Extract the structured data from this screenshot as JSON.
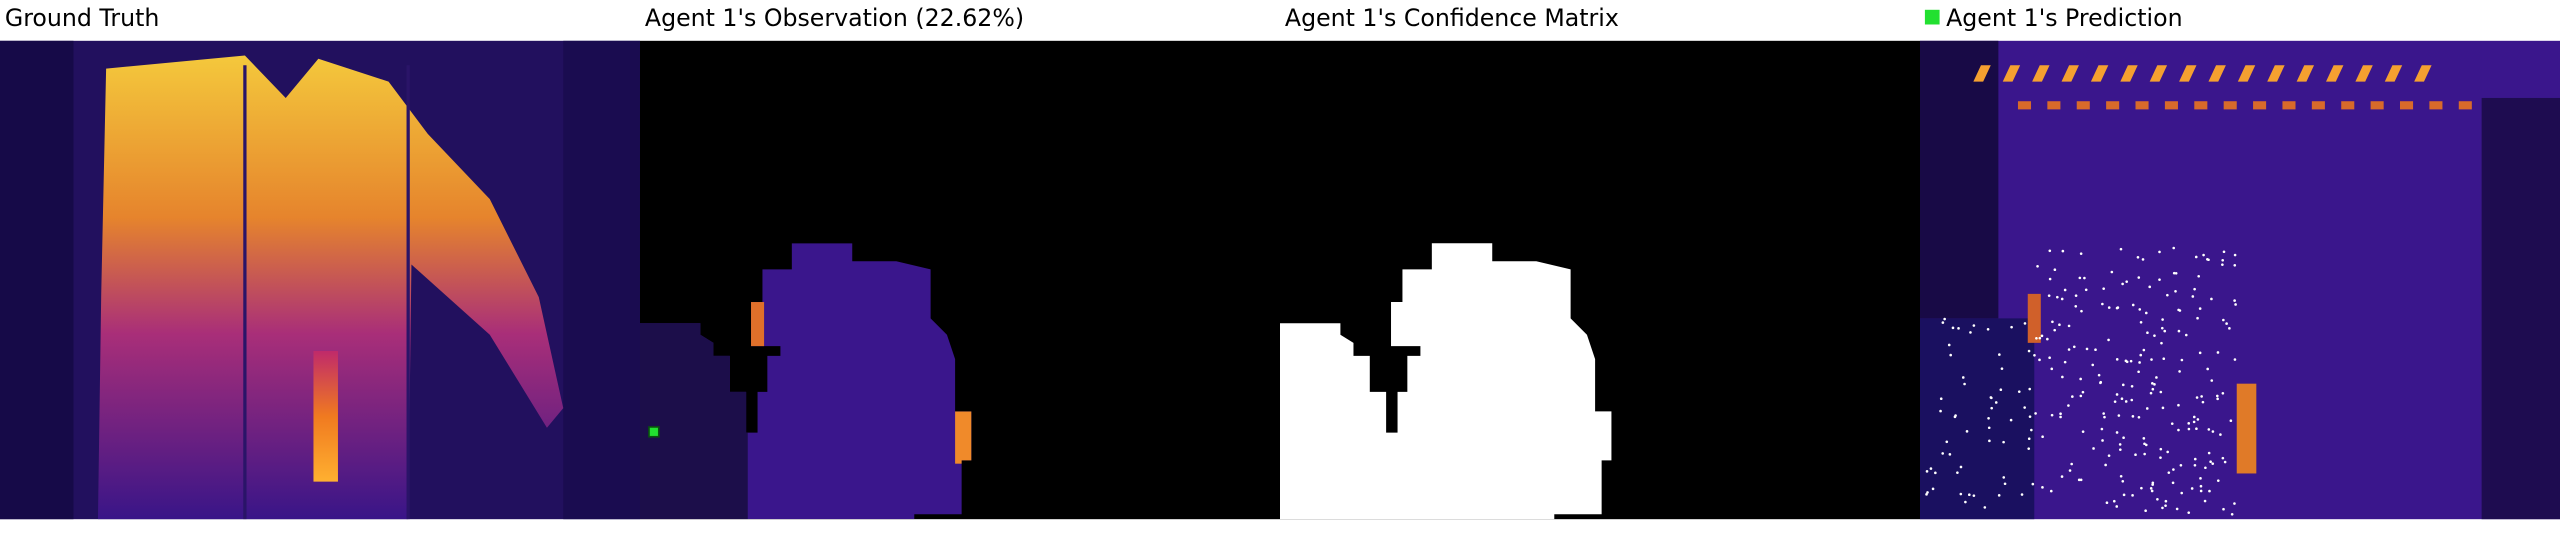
{
  "panels": [
    {
      "title": "Ground Truth"
    },
    {
      "title": "Agent 1's Observation (22.62%)"
    },
    {
      "title": "Agent 1's Confidence Matrix"
    },
    {
      "title": "Agent 1's Prediction"
    }
  ]
}
